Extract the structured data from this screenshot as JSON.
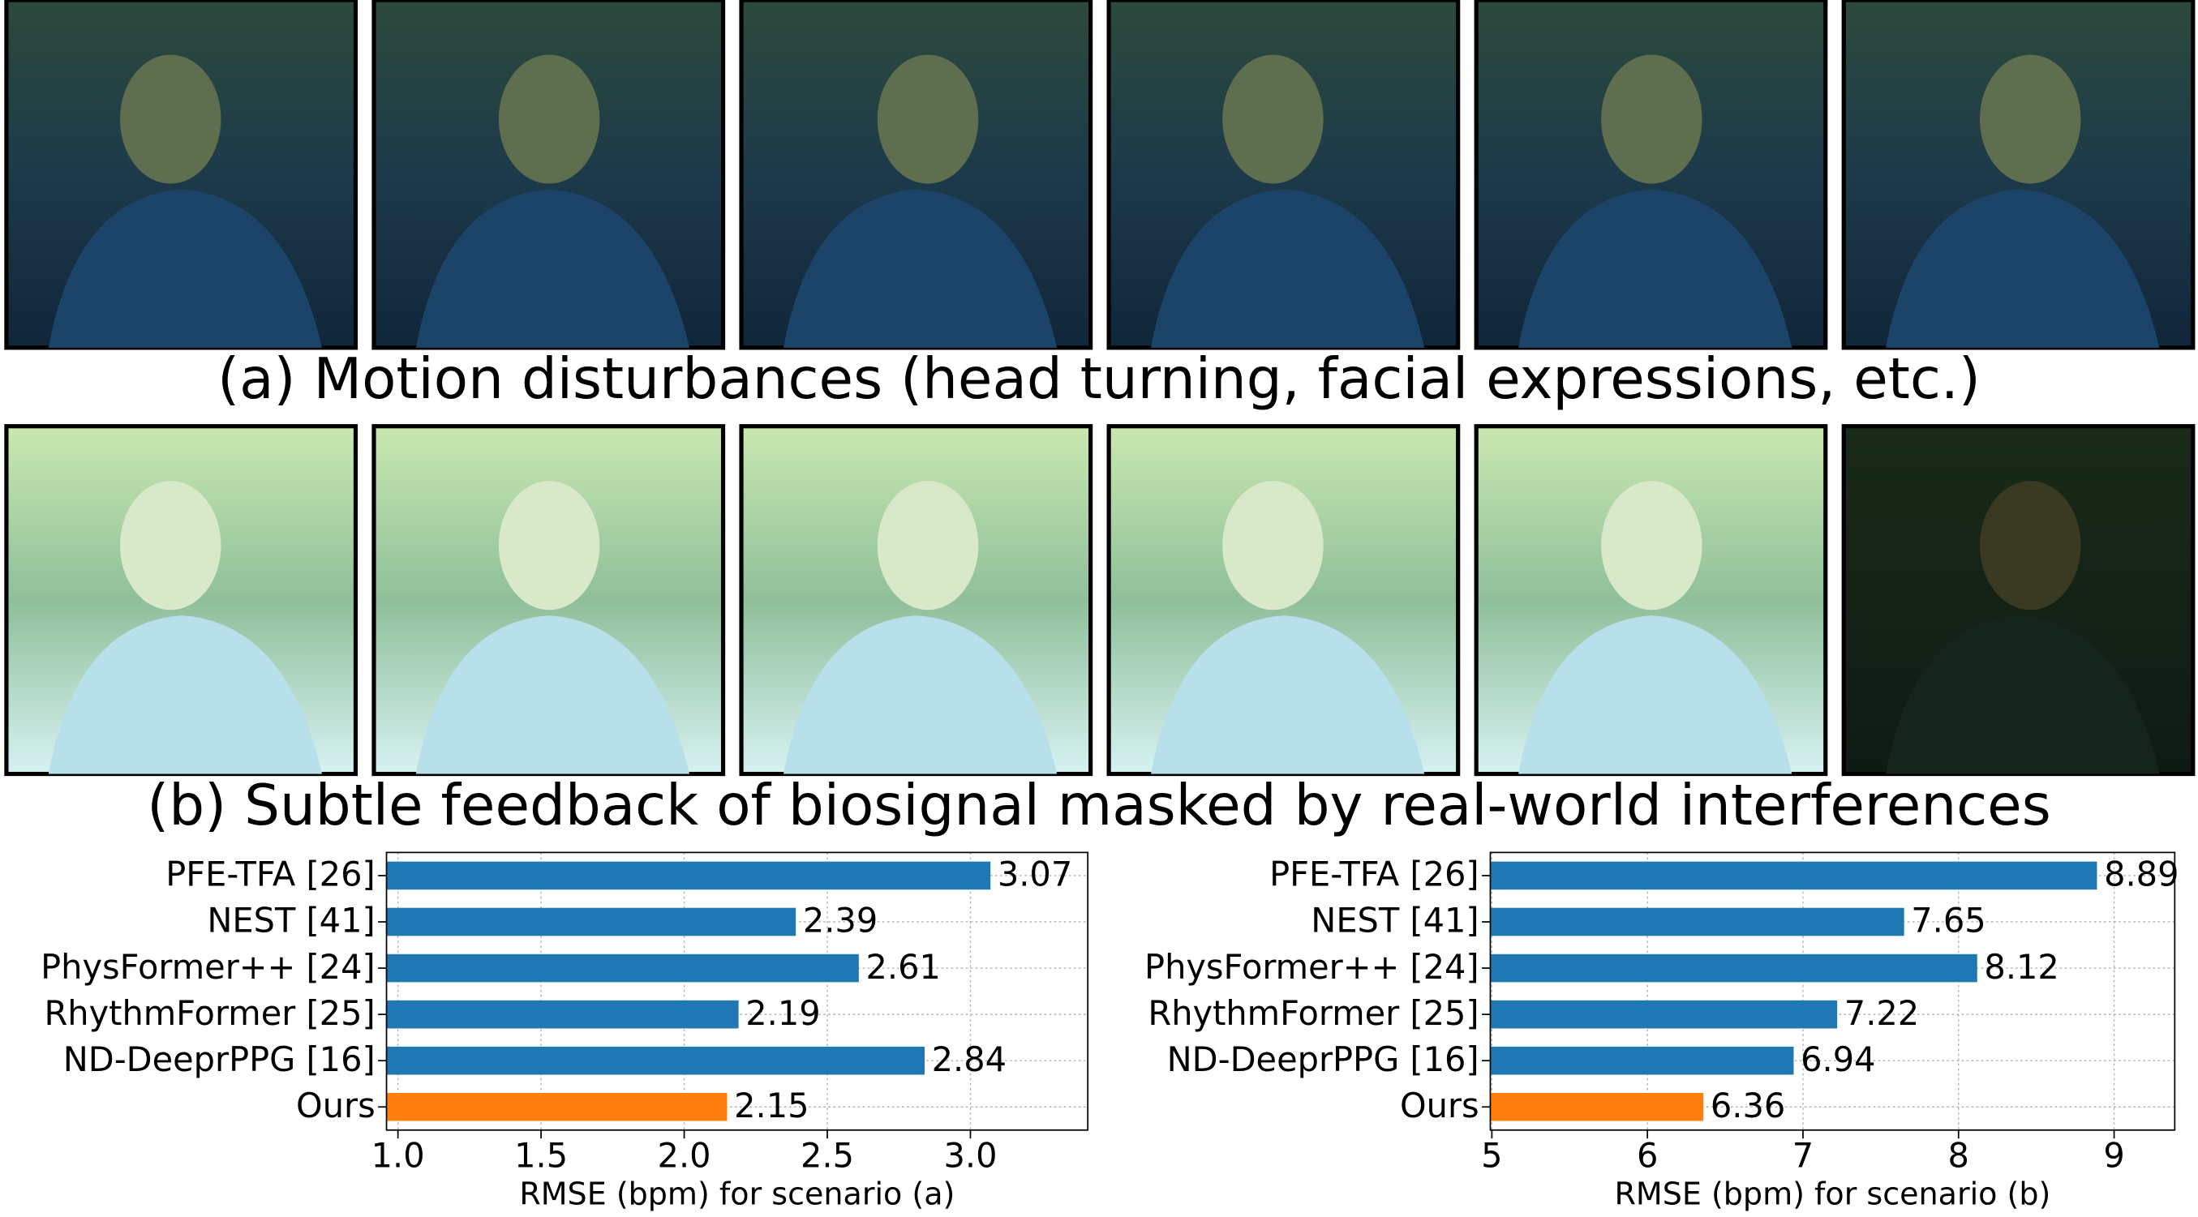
{
  "figure": {
    "captions": [
      "(a) Motion disturbances (head turning, facial expressions, etc.)",
      "(b) Subtle feedback of biosignal masked by real-world interferences"
    ]
  },
  "chart_data": [
    {
      "type": "barh",
      "xlabel": "RMSE (bpm) for scenario (a)",
      "categories": [
        "PFE-TFA [26]",
        "NEST [41]",
        "PhysFormer++ [24]",
        "RhythmFormer [25]",
        "ND-DeeprPPG [16]",
        "Ours"
      ],
      "values": [
        3.07,
        2.39,
        2.61,
        2.19,
        2.84,
        2.15
      ],
      "colors": [
        "#1f77b4",
        "#1f77b4",
        "#1f77b4",
        "#1f77b4",
        "#1f77b4",
        "#ff7f0e"
      ],
      "xlim": [
        0.96,
        3.41
      ],
      "xticks": [
        {
          "value": 1,
          "label": "1.0"
        },
        {
          "value": 1.5,
          "label": "1.5"
        },
        {
          "value": 2,
          "label": "2.0"
        },
        {
          "value": 2.5,
          "label": "2.5"
        },
        {
          "value": 3,
          "label": "3.0"
        }
      ],
      "grid": true
    },
    {
      "type": "barh",
      "xlabel": "RMSE (bpm) for scenario (b)",
      "categories": [
        "PFE-TFA [26]",
        "NEST [41]",
        "PhysFormer++ [24]",
        "RhythmFormer [25]",
        "ND-DeeprPPG [16]",
        "Ours"
      ],
      "values": [
        8.89,
        7.65,
        8.12,
        7.22,
        6.94,
        6.36
      ],
      "colors": [
        "#1f77b4",
        "#1f77b4",
        "#1f77b4",
        "#1f77b4",
        "#1f77b4",
        "#ff7f0e"
      ],
      "xlim": [
        4.99,
        9.39
      ],
      "xticks": [
        5,
        6,
        7,
        8,
        9
      ],
      "grid": true
    }
  ]
}
